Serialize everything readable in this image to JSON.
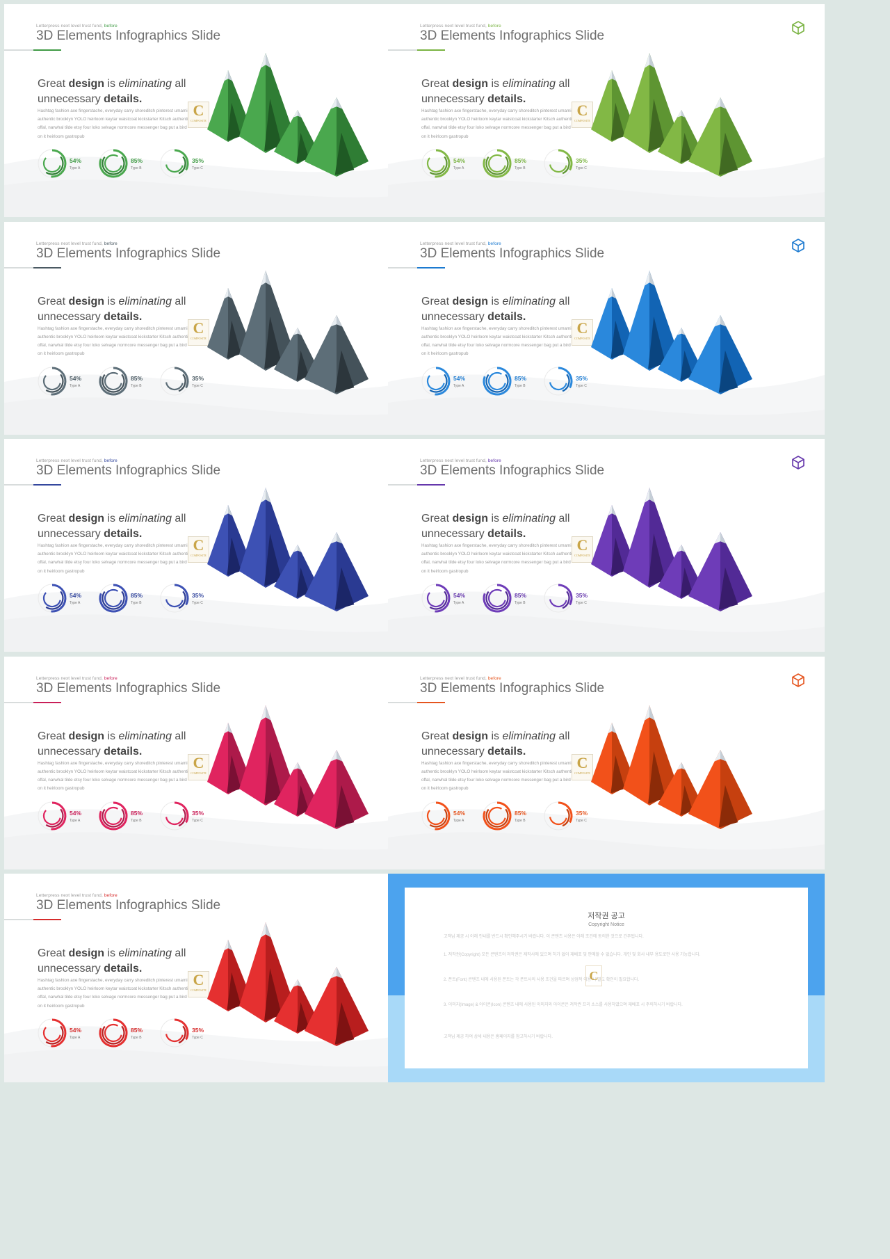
{
  "slide_template": {
    "eyebrow": "Letterpress next level trust fund,",
    "eyebrow_accent": "before",
    "title": "3D Elements Infographics Slide",
    "headline_parts": [
      "Great ",
      "design",
      " is ",
      "eliminating",
      " all",
      "unnecessary ",
      "details."
    ],
    "body": "Hashtag fashion axe fingerstache, everyday carry shoreditch pinterest umami authentic brooklyn YOLO heirloom keytar waistcoat kickstarter Kitsch authentic offal, narwhal tilde etsy four loko selvage normcore messenger bag put a bird on it heirloom gastropub",
    "stamp_letter": "C",
    "stamp_caption": "COMPOSITE",
    "stats": [
      {
        "percent": "54%",
        "label": "Type A",
        "value": 0.54
      },
      {
        "percent": "85%",
        "label": "Type B",
        "value": 0.85
      },
      {
        "percent": "35%",
        "label": "Type C",
        "value": 0.35
      }
    ]
  },
  "themes": [
    {
      "name": "green",
      "c1": "#4aa84e",
      "c2": "#2f7d34",
      "c3": "#1f5a24",
      "accent": "#3f9a44"
    },
    {
      "name": "lime",
      "c1": "#82b845",
      "c2": "#5e9532",
      "c3": "#416a22",
      "accent": "#7ab342"
    },
    {
      "name": "slate",
      "c1": "#5d6e78",
      "c2": "#44525a",
      "c3": "#2c363c",
      "accent": "#4a5962"
    },
    {
      "name": "blue",
      "c1": "#2a88dc",
      "c2": "#1264b4",
      "c3": "#0a4580",
      "accent": "#1c7ad0"
    },
    {
      "name": "indigo",
      "c1": "#3d51b4",
      "c2": "#2a3a92",
      "c3": "#1b2668",
      "accent": "#34479e"
    },
    {
      "name": "purple",
      "c1": "#6e3cb8",
      "c2": "#522a96",
      "c3": "#391c6c",
      "accent": "#6537ac"
    },
    {
      "name": "magenta",
      "c1": "#e0245f",
      "c2": "#ad1a4a",
      "c3": "#7a1034",
      "accent": "#c91f58"
    },
    {
      "name": "orange",
      "c1": "#f2511a",
      "c2": "#c6400f",
      "c3": "#8c2b08",
      "accent": "#e5551f"
    },
    {
      "name": "red",
      "c1": "#e53030",
      "c2": "#b81e1e",
      "c3": "#7f1212",
      "accent": "#d62b2b"
    }
  ],
  "notice": {
    "title": "저작권 공고",
    "subtitle": "Copyright Notice",
    "paragraphs": [
      "고객님 제공 시 아래 안내를 반드시 확인해주시기 바랍니다. 이 콘텐츠 사용은 아래 조건에 동의한 것으로 간주됩니다.",
      "1. 저작권(Copyright) 모든 콘텐츠의 저작권은 제작사에 있으며 허가 없이 재배포 및 판매할 수 없습니다. 개인 및 회사 내부 용도로만 사용 가능합니다.",
      "2. 폰트(Font) 콘텐츠 내에 사용된 폰트는 각 폰트사의 사용 조건을 따르며 상업적 이용 시 별도 확인이 필요합니다.",
      "3. 이미지(Image) & 아이콘(Icon) 콘텐츠 내에 사용된 이미지와 아이콘은 저작권 프리 소스를 사용하였으며 재배포 시 주의하시기 바랍니다.",
      "고객님 제공 하여 상세 내용은 홈페이지를 참고하시기 바랍니다."
    ]
  }
}
